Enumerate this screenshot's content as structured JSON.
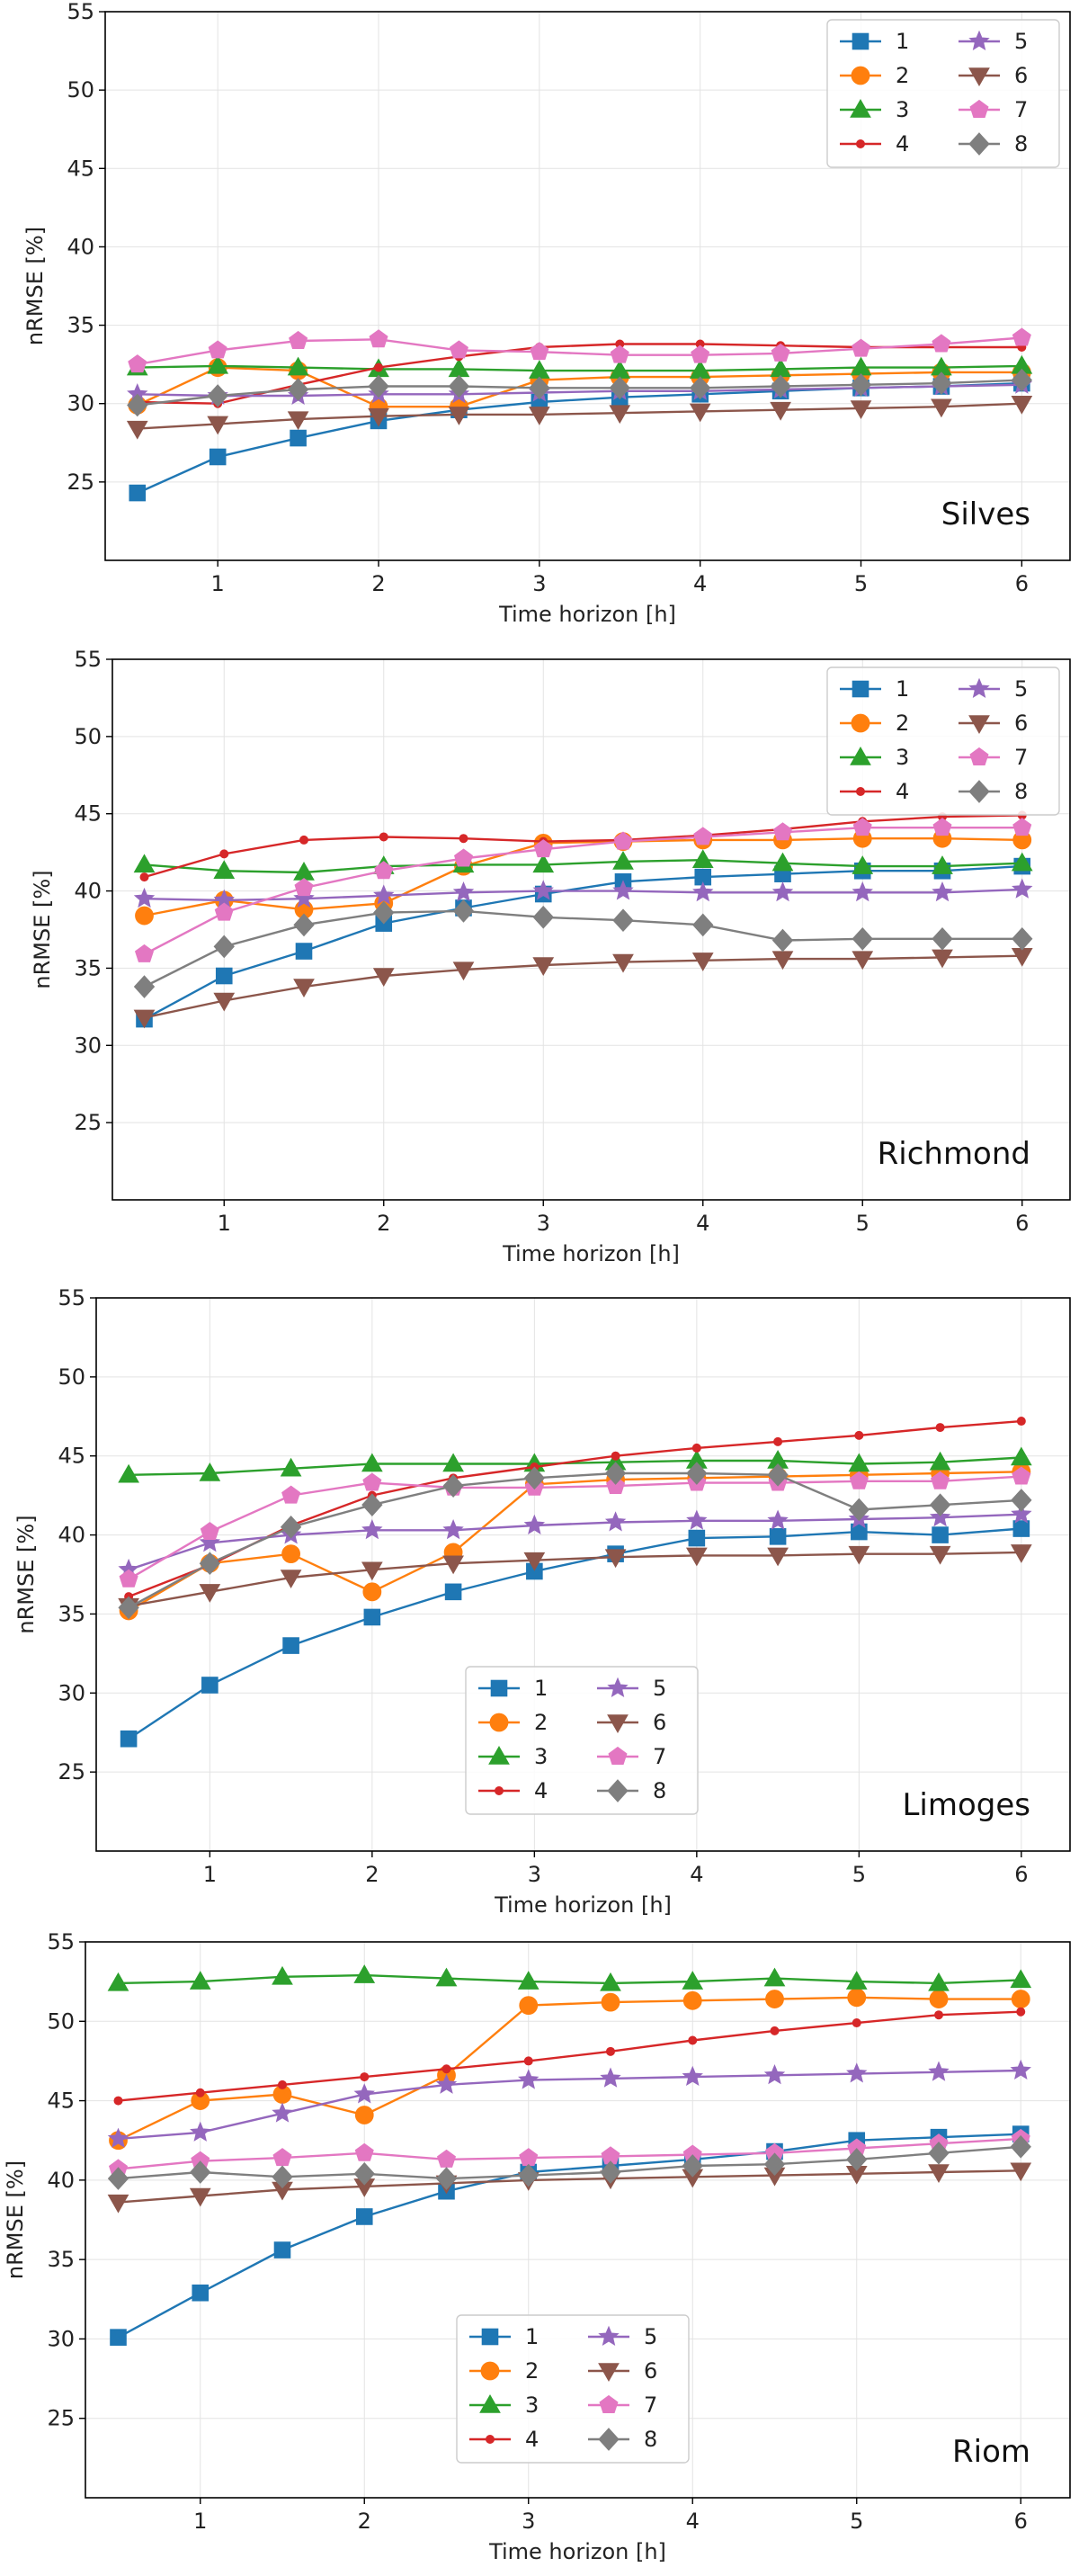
{
  "colors": {
    "1": "#1f77b4",
    "2": "#ff7f0e",
    "3": "#2ca02c",
    "4": "#d62728",
    "5": "#9467bd",
    "6": "#8c564b",
    "7": "#e377c2",
    "8": "#7f7f7f"
  },
  "markers": {
    "1": "square",
    "2": "circle",
    "3": "triangle-up",
    "4": "small-dot",
    "5": "star",
    "6": "triangle-down",
    "7": "pentagon",
    "8": "diamond"
  },
  "chart_data": [
    {
      "type": "line",
      "site": "Silves",
      "xlabel": "Time horizon [h]",
      "ylabel": "nRMSE [%]",
      "xlim": [
        0.3,
        6.3
      ],
      "ylim": [
        20,
        55
      ],
      "xticks": [
        "1",
        "2",
        "3",
        "4",
        "5",
        "6"
      ],
      "yticks": [
        "25",
        "30",
        "35",
        "40",
        "45",
        "50",
        "55"
      ],
      "legend_position": "top-right",
      "grid": true,
      "x": [
        0.5,
        1,
        1.5,
        2,
        2.5,
        3,
        3.5,
        4,
        4.5,
        5,
        5.5,
        6
      ],
      "series": [
        {
          "name": "1",
          "values": [
            24.3,
            26.6,
            27.8,
            28.9,
            29.6,
            30.1,
            30.4,
            30.6,
            30.8,
            31.0,
            31.1,
            31.3
          ]
        },
        {
          "name": "2",
          "values": [
            29.9,
            32.3,
            32.1,
            29.8,
            29.8,
            31.5,
            31.7,
            31.7,
            31.8,
            31.9,
            32.0,
            32.0
          ]
        },
        {
          "name": "3",
          "values": [
            32.3,
            32.4,
            32.3,
            32.2,
            32.2,
            32.1,
            32.1,
            32.1,
            32.2,
            32.3,
            32.3,
            32.4
          ]
        },
        {
          "name": "4",
          "values": [
            30.1,
            30.0,
            31.2,
            32.3,
            33.0,
            33.6,
            33.8,
            33.8,
            33.7,
            33.6,
            33.6,
            33.6
          ]
        },
        {
          "name": "5",
          "values": [
            30.6,
            30.5,
            30.5,
            30.6,
            30.6,
            30.7,
            30.8,
            30.8,
            30.9,
            31.0,
            31.1,
            31.2
          ]
        },
        {
          "name": "6",
          "values": [
            28.4,
            28.7,
            29.0,
            29.2,
            29.3,
            29.3,
            29.4,
            29.5,
            29.6,
            29.7,
            29.8,
            30.0
          ]
        },
        {
          "name": "7",
          "values": [
            32.5,
            33.4,
            34.0,
            34.1,
            33.4,
            33.3,
            33.1,
            33.1,
            33.2,
            33.5,
            33.8,
            34.2
          ]
        },
        {
          "name": "8",
          "values": [
            29.9,
            30.5,
            30.9,
            31.1,
            31.1,
            31.0,
            31.0,
            31.0,
            31.1,
            31.2,
            31.3,
            31.5
          ]
        }
      ]
    },
    {
      "type": "line",
      "site": "Richmond",
      "xlabel": "Time horizon [h]",
      "ylabel": "nRMSE [%]",
      "xlim": [
        0.3,
        6.3
      ],
      "ylim": [
        20,
        55
      ],
      "xticks": [
        "1",
        "2",
        "3",
        "4",
        "5",
        "6"
      ],
      "yticks": [
        "25",
        "30",
        "35",
        "40",
        "45",
        "50",
        "55"
      ],
      "legend_position": "top-right",
      "grid": true,
      "x": [
        0.5,
        1,
        1.5,
        2,
        2.5,
        3,
        3.5,
        4,
        4.5,
        5,
        5.5,
        6
      ],
      "series": [
        {
          "name": "1",
          "values": [
            31.7,
            34.5,
            36.1,
            37.9,
            38.9,
            39.8,
            40.6,
            40.9,
            41.1,
            41.3,
            41.3,
            41.6
          ]
        },
        {
          "name": "2",
          "values": [
            38.4,
            39.4,
            38.8,
            39.2,
            41.6,
            43.1,
            43.2,
            43.3,
            43.3,
            43.4,
            43.4,
            43.3
          ]
        },
        {
          "name": "3",
          "values": [
            41.7,
            41.3,
            41.2,
            41.6,
            41.7,
            41.7,
            41.9,
            42.0,
            41.8,
            41.6,
            41.6,
            41.8
          ]
        },
        {
          "name": "4",
          "values": [
            40.9,
            42.4,
            43.3,
            43.5,
            43.4,
            43.2,
            43.3,
            43.6,
            44.0,
            44.5,
            44.8,
            44.9
          ]
        },
        {
          "name": "5",
          "values": [
            39.5,
            39.4,
            39.5,
            39.7,
            39.9,
            40.0,
            40.0,
            39.9,
            39.9,
            39.9,
            39.9,
            40.1
          ]
        },
        {
          "name": "6",
          "values": [
            31.8,
            32.9,
            33.8,
            34.5,
            34.9,
            35.2,
            35.4,
            35.5,
            35.6,
            35.6,
            35.7,
            35.8
          ]
        },
        {
          "name": "7",
          "values": [
            35.9,
            38.6,
            40.2,
            41.3,
            42.1,
            42.7,
            43.2,
            43.5,
            43.8,
            44.1,
            44.1,
            44.1
          ]
        },
        {
          "name": "8",
          "values": [
            33.8,
            36.4,
            37.8,
            38.6,
            38.7,
            38.3,
            38.1,
            37.8,
            36.8,
            36.9,
            36.9,
            36.9
          ]
        }
      ]
    },
    {
      "type": "line",
      "site": "Limoges",
      "xlabel": "Time horizon [h]",
      "ylabel": "nRMSE [%]",
      "xlim": [
        0.3,
        6.3
      ],
      "ylim": [
        20,
        55
      ],
      "xticks": [
        "1",
        "2",
        "3",
        "4",
        "5",
        "6"
      ],
      "yticks": [
        "25",
        "30",
        "35",
        "40",
        "45",
        "50",
        "55"
      ],
      "legend_position": "lower-center",
      "grid": true,
      "x": [
        0.5,
        1,
        1.5,
        2,
        2.5,
        3,
        3.5,
        4,
        4.5,
        5,
        5.5,
        6
      ],
      "series": [
        {
          "name": "1",
          "values": [
            27.1,
            30.5,
            33.0,
            34.8,
            36.4,
            37.7,
            38.8,
            39.8,
            39.9,
            40.2,
            40.0,
            40.4
          ]
        },
        {
          "name": "2",
          "values": [
            35.2,
            38.2,
            38.8,
            36.4,
            38.9,
            43.2,
            43.5,
            43.6,
            43.7,
            43.8,
            43.9,
            44.0
          ]
        },
        {
          "name": "3",
          "values": [
            43.8,
            43.9,
            44.2,
            44.5,
            44.5,
            44.5,
            44.6,
            44.7,
            44.7,
            44.5,
            44.6,
            44.9
          ]
        },
        {
          "name": "4",
          "values": [
            36.1,
            38.1,
            40.6,
            42.5,
            43.6,
            44.3,
            45.0,
            45.5,
            45.9,
            46.3,
            46.8,
            47.2
          ]
        },
        {
          "name": "5",
          "values": [
            37.8,
            39.5,
            40.0,
            40.3,
            40.3,
            40.6,
            40.8,
            40.9,
            40.9,
            41.0,
            41.1,
            41.3
          ]
        },
        {
          "name": "6",
          "values": [
            35.5,
            36.4,
            37.3,
            37.8,
            38.2,
            38.4,
            38.6,
            38.7,
            38.7,
            38.8,
            38.8,
            38.9
          ]
        },
        {
          "name": "7",
          "values": [
            37.2,
            40.2,
            42.5,
            43.3,
            43.0,
            43.0,
            43.1,
            43.3,
            43.3,
            43.4,
            43.4,
            43.7
          ]
        },
        {
          "name": "8",
          "values": [
            35.4,
            38.2,
            40.5,
            41.9,
            43.1,
            43.6,
            43.9,
            43.9,
            43.8,
            41.6,
            41.9,
            42.2
          ]
        }
      ]
    },
    {
      "type": "line",
      "site": "Riom",
      "xlabel": "Time horizon [h]",
      "ylabel": "nRMSE [%]",
      "xlim": [
        0.3,
        6.3
      ],
      "ylim": [
        20,
        55
      ],
      "xticks": [
        "1",
        "2",
        "3",
        "4",
        "5",
        "6"
      ],
      "yticks": [
        "25",
        "30",
        "35",
        "40",
        "45",
        "50",
        "55"
      ],
      "legend_position": "lower-center",
      "grid": true,
      "x": [
        0.5,
        1,
        1.5,
        2,
        2.5,
        3,
        3.5,
        4,
        4.5,
        5,
        5.5,
        6
      ],
      "series": [
        {
          "name": "1",
          "values": [
            30.1,
            32.9,
            35.6,
            37.7,
            39.3,
            40.5,
            40.9,
            41.3,
            41.8,
            42.5,
            42.7,
            42.9
          ]
        },
        {
          "name": "2",
          "values": [
            42.5,
            45.0,
            45.4,
            44.1,
            46.6,
            51.0,
            51.2,
            51.3,
            51.4,
            51.5,
            51.4,
            51.4
          ]
        },
        {
          "name": "3",
          "values": [
            52.4,
            52.5,
            52.8,
            52.9,
            52.7,
            52.5,
            52.4,
            52.5,
            52.7,
            52.5,
            52.4,
            52.6
          ]
        },
        {
          "name": "4",
          "values": [
            45.0,
            45.5,
            46.0,
            46.5,
            47.0,
            47.5,
            48.1,
            48.8,
            49.4,
            49.9,
            50.4,
            50.6
          ]
        },
        {
          "name": "5",
          "values": [
            42.6,
            43.0,
            44.2,
            45.4,
            46.0,
            46.3,
            46.4,
            46.5,
            46.6,
            46.7,
            46.8,
            46.9
          ]
        },
        {
          "name": "6",
          "values": [
            38.6,
            39.0,
            39.4,
            39.6,
            39.8,
            40.0,
            40.1,
            40.2,
            40.3,
            40.4,
            40.5,
            40.6
          ]
        },
        {
          "name": "7",
          "values": [
            40.7,
            41.2,
            41.4,
            41.7,
            41.3,
            41.4,
            41.5,
            41.6,
            41.7,
            42.0,
            42.3,
            42.6
          ]
        },
        {
          "name": "8",
          "values": [
            40.1,
            40.5,
            40.2,
            40.4,
            40.1,
            40.3,
            40.5,
            40.9,
            41.0,
            41.3,
            41.7,
            42.1
          ]
        }
      ]
    }
  ]
}
